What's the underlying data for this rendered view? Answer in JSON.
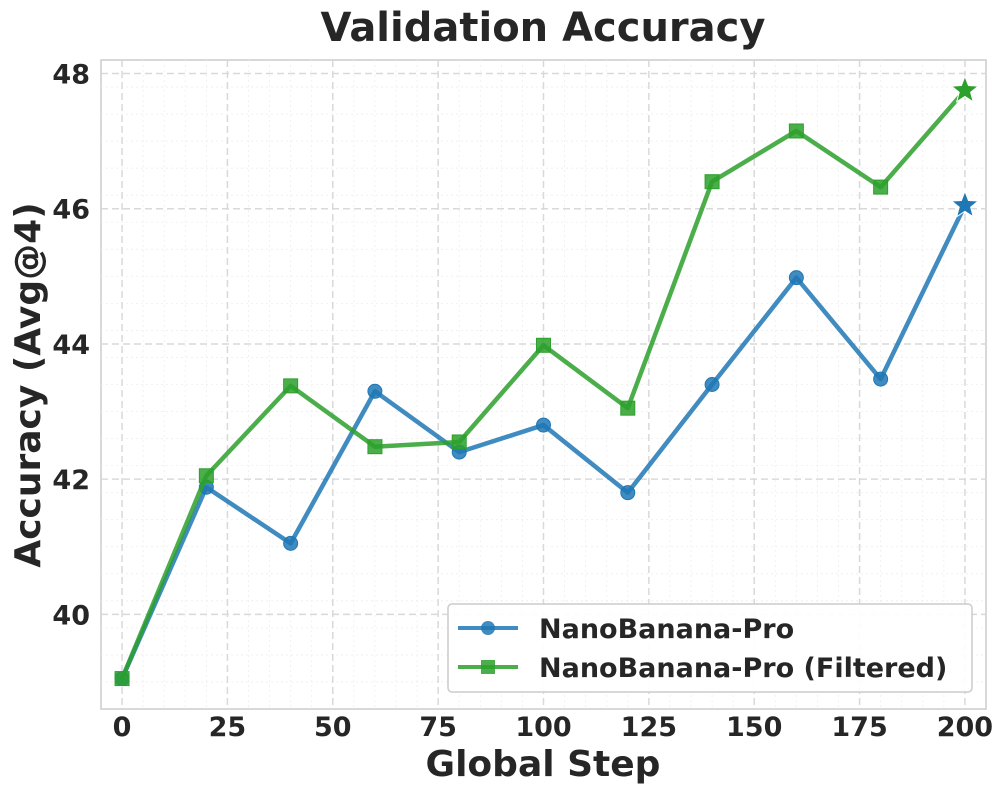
{
  "chart_data": {
    "type": "line",
    "title": "Validation Accuracy",
    "xlabel": "Global Step",
    "ylabel": "Accuracy (Avg@4)",
    "xlim": [
      -5,
      205
    ],
    "ylim": [
      38.6,
      48.2
    ],
    "xticks": [
      0,
      25,
      50,
      75,
      100,
      125,
      150,
      175,
      200
    ],
    "yticks": [
      40,
      42,
      44,
      46,
      48
    ],
    "grid": true,
    "legend_position": "lower-right",
    "series": [
      {
        "name": "NanoBanana-Pro",
        "color": "#1f77b4",
        "marker": "circle",
        "x": [
          0,
          20,
          40,
          60,
          80,
          100,
          120,
          140,
          160,
          180,
          200
        ],
        "y": [
          39.05,
          41.88,
          41.05,
          43.3,
          42.4,
          42.8,
          41.8,
          43.4,
          44.98,
          43.48,
          46.05
        ],
        "final_marker": "star"
      },
      {
        "name": "NanoBanana-Pro (Filtered)",
        "color": "#2ca02c",
        "marker": "square",
        "x": [
          0,
          20,
          40,
          60,
          80,
          100,
          120,
          140,
          160,
          180,
          200
        ],
        "y": [
          39.05,
          42.05,
          43.38,
          42.48,
          42.55,
          43.98,
          43.05,
          46.4,
          47.15,
          46.32,
          47.75
        ],
        "final_marker": "star"
      }
    ]
  }
}
